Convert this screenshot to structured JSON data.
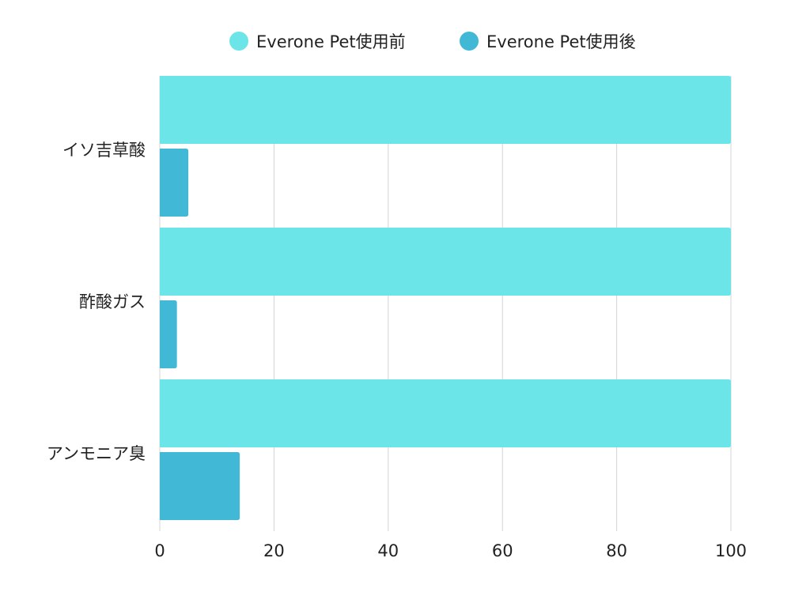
{
  "chart_data": {
    "type": "bar",
    "orientation": "horizontal",
    "title": "",
    "xlabel": "",
    "ylabel": "",
    "categories": [
      "イソ吉草酸",
      "酢酸ガス",
      "アンモニア臭"
    ],
    "series": [
      {
        "name": "Everone Pet使用前",
        "values": [
          100,
          100,
          100
        ],
        "color": "#6ce5e8"
      },
      {
        "name": "Everone Pet使用後",
        "values": [
          5,
          3,
          14
        ],
        "color": "#41b8d5"
      }
    ],
    "xlim": [
      0,
      100
    ],
    "xticks": [
      "0",
      "20",
      "40",
      "60",
      "80",
      "100"
    ],
    "grid": "vertical",
    "legend_position": "top-center"
  }
}
